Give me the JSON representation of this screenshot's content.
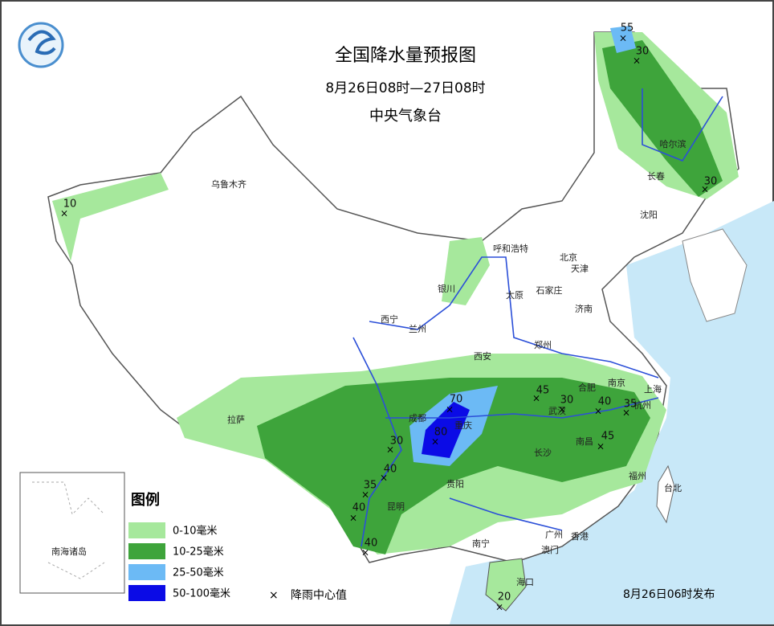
{
  "header": {
    "title": "全国降水量预报图",
    "period": "8月26日08时—27日08时",
    "issuer": "中央气象台"
  },
  "cities": [
    "乌鲁木齐",
    "哈尔滨",
    "长春",
    "沈阳",
    "呼和浩特",
    "北京",
    "天津",
    "石家庄",
    "太原",
    "济南",
    "银川",
    "西宁",
    "兰州",
    "西安",
    "郑州",
    "南京",
    "合肥",
    "上海",
    "杭州",
    "武汉",
    "成都",
    "重庆",
    "拉萨",
    "长沙",
    "南昌",
    "福州",
    "台北",
    "贵阳",
    "昆明",
    "南宁",
    "广州",
    "香港",
    "澳门",
    "海口"
  ],
  "inset": {
    "label": "南海诸岛"
  },
  "rain_centers": [
    55,
    30,
    30,
    10,
    70,
    80,
    45,
    30,
    40,
    35,
    45,
    30,
    40,
    35,
    40,
    40,
    20
  ],
  "legend": {
    "title": "图例",
    "items": [
      {
        "label": "0-10毫米",
        "color": "#a6e89c"
      },
      {
        "label": "10-25毫米",
        "color": "#3ea43b"
      },
      {
        "label": "25-50毫米",
        "color": "#6cbaf5"
      },
      {
        "label": "50-100毫米",
        "color": "#0b0be6"
      }
    ],
    "center_label": "降雨中心值"
  },
  "issued": "8月26日06时发布"
}
